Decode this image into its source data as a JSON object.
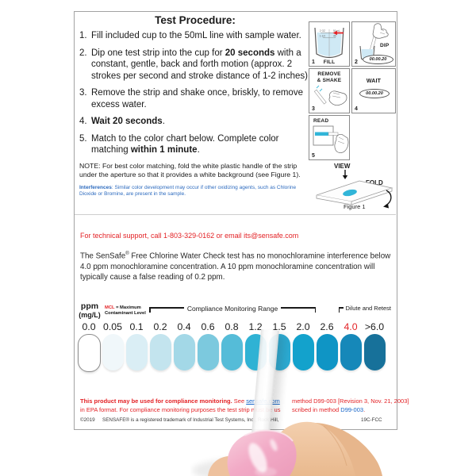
{
  "colors": {
    "red": "#e32226",
    "link_blue": "#1464c8",
    "interference_blue": "#2d6bbf",
    "aperture_teal": "#31b5d8",
    "water_blue": "#cfe9f5"
  },
  "procedure": {
    "title": "Test Procedure:",
    "steps": [
      {
        "num": "1.",
        "parts": [
          {
            "text": "Fill included cup to the 50mL line with sample water."
          }
        ]
      },
      {
        "num": "2.",
        "parts": [
          {
            "text": "Dip one test strip into the cup for "
          },
          {
            "text": "20 seconds"
          },
          {
            "text": " with a constant, gentle, back and forth motion (approx. 2 strokes per second and stroke distance of 1-2 inches)."
          }
        ]
      },
      {
        "num": "3.",
        "parts": [
          {
            "text": "Remove the strip and shake once, briskly, to remove excess water."
          }
        ]
      },
      {
        "num": "4.",
        "parts": [
          {
            "text": "Wait 20 seconds"
          },
          {
            "text": "."
          }
        ]
      },
      {
        "num": "5.",
        "parts": [
          {
            "text": "Match to the color chart below. Complete color matching "
          },
          {
            "text": "within 1 minute"
          },
          {
            "text": "."
          }
        ]
      }
    ],
    "note": "NOTE: For best color matching, fold the white plastic handle of the strip under the aperture so that it provides a white background (see Figure 1).",
    "interferences_label": "Interferences",
    "interferences_text": ": Similar color development may occur if other oxidizing agents, such as Chlorine Dioxide or Bromine, are present in the sample."
  },
  "panels": {
    "fill": {
      "num": "1",
      "label": "FILL",
      "mark1_left": "2 OZ",
      "mark1_right": "50 mL",
      "mark2_left": "1-1/2",
      "mark2_right": "45"
    },
    "dip": {
      "num": "2",
      "label": "DIP",
      "timer": "00.00.20"
    },
    "shake": {
      "num": "3",
      "label_line1": "REMOVE",
      "label_line2": "& SHAKE"
    },
    "wait": {
      "num": "4",
      "label": "WAIT",
      "timer": "00.00.20"
    },
    "read": {
      "num": "5",
      "label": "READ"
    },
    "figure": {
      "view": "VIEW",
      "fold": "FOLD",
      "caption": "Figure 1"
    }
  },
  "support_line": "For technical support, call 1-803-329-0162 or email its@sensafe.com",
  "info": {
    "pre": "The SenSafe",
    "reg": "®",
    "post": " Free Chlorine Water Check test has no monochloramine interference below 4.0 ppm monochloramine concentration. A 10 ppm monochloramine concentration will typically cause a false reading of 0.2 ppm."
  },
  "chart": {
    "unit_line1": "ppm",
    "unit_line2": "(mg/L)",
    "mcl_bold": "MCL",
    "mcl_rest": " = Maximum",
    "mcl_line2": "Contaminant Level",
    "compliance_label": "Compliance Monitoring Range",
    "dilute_label": "Dilute and Retest",
    "swatches": [
      {
        "label": "0.0",
        "color": "#ffffff",
        "border": "#8b8b8b"
      },
      {
        "label": "0.05",
        "color": "#f0f7fa"
      },
      {
        "label": "0.1",
        "color": "#daeef5"
      },
      {
        "label": "0.2",
        "color": "#c3e4ee"
      },
      {
        "label": "0.4",
        "color": "#a3d8e7"
      },
      {
        "label": "0.6",
        "color": "#7cc9de"
      },
      {
        "label": "0.8",
        "color": "#55bcd8"
      },
      {
        "label": "1.2",
        "color": "#2fb2d4"
      },
      {
        "label": "1.5",
        "color": "#2aaad2"
      },
      {
        "label": "2.0",
        "color": "#13a2cc"
      },
      {
        "label": "2.6",
        "color": "#0f95c5"
      },
      {
        "label": "4.0",
        "color": "#1688b9",
        "red": true
      },
      {
        "label": ">6.0",
        "color": "#17719a"
      }
    ]
  },
  "footer": {
    "line1_bold": "This product may be used for compliance monitoring.",
    "line1_see": " See ",
    "line1_link": "sensafe.com",
    "line1_right": "method D99-003 [Revision 3, Nov. 21, 2003]",
    "line2_left": "in EPA format. For compliance monitoring purposes the test strip must be us",
    "line2_right_pre": "scribed in method ",
    "line2_link": "D99-003",
    "line2_end": ".",
    "copyright": "©2019",
    "trademark": "SENSAFE® is a registered trademark of Industrial Test Systems, Inc., Rock Hill,",
    "code": "19C-FCC"
  }
}
